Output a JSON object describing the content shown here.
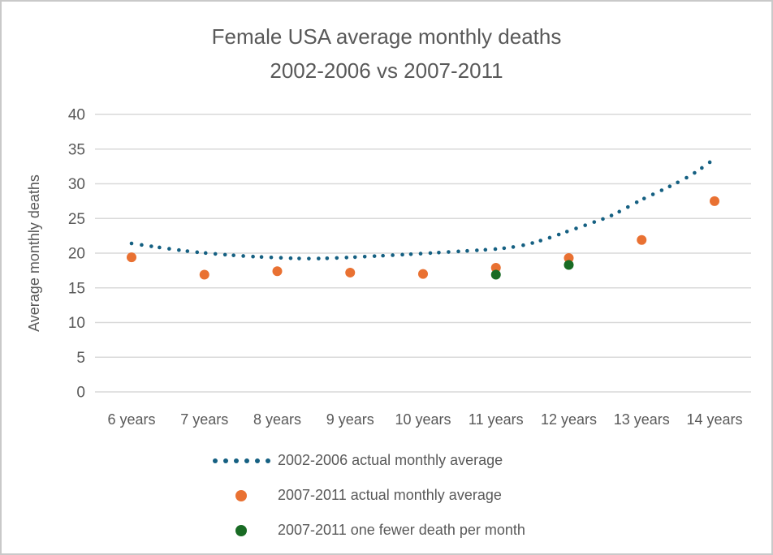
{
  "title": {
    "line1": "Female USA average monthly deaths",
    "line2": "2002-2006 vs 2007-2011"
  },
  "colors": {
    "blue": "#156082",
    "orange": "#E97132",
    "green": "#196B24",
    "gridline": "#D9D9D9",
    "axis_text": "#595959",
    "title_text": "#595959",
    "frame_border": "#C9C9C9",
    "background": "#FFFFFF"
  },
  "chart_data": {
    "type": "scatter",
    "title": "Female USA average monthly deaths 2002-2006 vs 2007-2011",
    "xlabel": "",
    "ylabel": "Average monthly deaths",
    "categories": [
      "6 years",
      "7 years",
      "8 years",
      "9 years",
      "10 years",
      "11 years",
      "12 years",
      "13 years",
      "14 years"
    ],
    "x_years": [
      6,
      7,
      8,
      9,
      10,
      11,
      12,
      13,
      14
    ],
    "ylim": [
      0,
      40
    ],
    "yticks": [
      0,
      5,
      10,
      15,
      20,
      25,
      30,
      35,
      40
    ],
    "grid": "horizontal",
    "legend_position": "bottom",
    "series": [
      {
        "name": "2002-2006 actual monthly average",
        "style": "dotted-line",
        "color": "#156082",
        "x": [
          6,
          7,
          8,
          9,
          10,
          11,
          12,
          13,
          14
        ],
        "values": [
          21.4,
          20.0,
          19.3,
          19.4,
          20.0,
          20.6,
          23.2,
          27.7,
          33.6
        ],
        "curve_points": [
          [
            6,
            21.4
          ],
          [
            6.4,
            20.8
          ],
          [
            6.8,
            20.25
          ],
          [
            7.2,
            19.85
          ],
          [
            7.6,
            19.55
          ],
          [
            8,
            19.35
          ],
          [
            8.4,
            19.22
          ],
          [
            8.8,
            19.3
          ],
          [
            9.2,
            19.5
          ],
          [
            9.6,
            19.72
          ],
          [
            10,
            19.95
          ],
          [
            10.4,
            20.2
          ],
          [
            10.8,
            20.45
          ],
          [
            11.1,
            20.7
          ],
          [
            11.4,
            21.2
          ],
          [
            11.7,
            22.1
          ],
          [
            12,
            23.2
          ],
          [
            12.3,
            24.3
          ],
          [
            12.6,
            25.5
          ],
          [
            13,
            27.7
          ],
          [
            13.4,
            29.7
          ],
          [
            13.7,
            31.4
          ],
          [
            14,
            33.6
          ]
        ]
      },
      {
        "name": "2007-2011 actual monthly average",
        "style": "scatter",
        "color": "#E97132",
        "x": [
          6,
          7,
          8,
          9,
          10,
          11,
          12,
          13,
          14
        ],
        "values": [
          19.4,
          16.9,
          17.4,
          17.2,
          17.0,
          17.9,
          19.3,
          21.9,
          27.5
        ]
      },
      {
        "name": "2007-2011 one fewer death per month",
        "style": "scatter",
        "color": "#196B24",
        "x": [
          11,
          12
        ],
        "values": [
          16.9,
          18.3
        ]
      }
    ]
  }
}
